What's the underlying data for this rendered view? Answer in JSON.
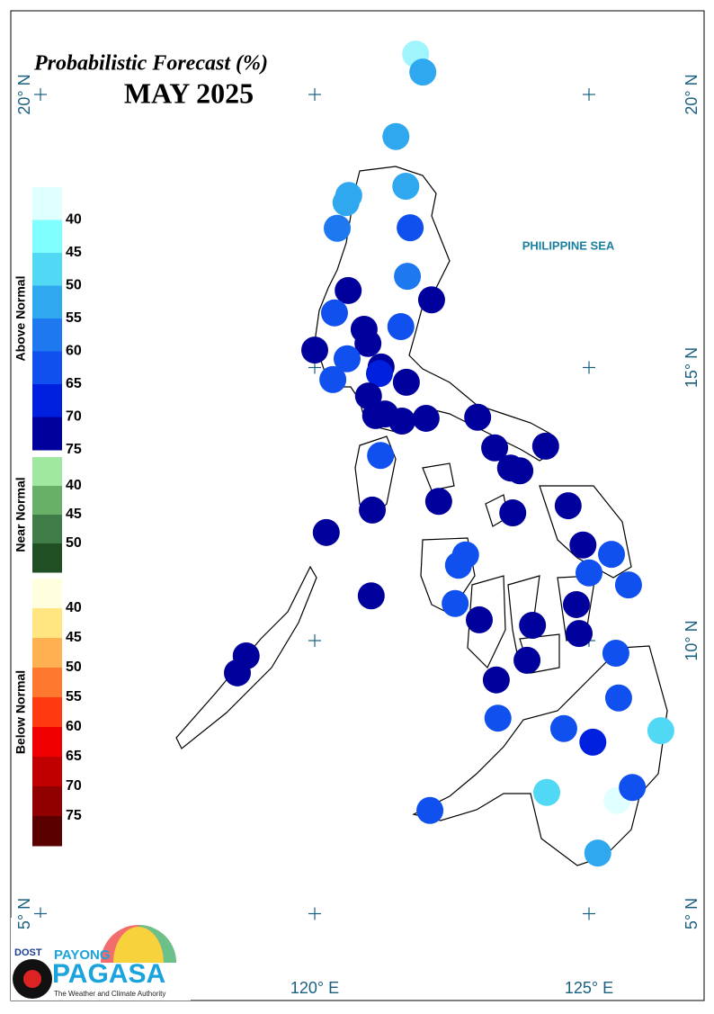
{
  "header": {
    "title": "Probabilistic Forecast (%)",
    "subtitle": "MAY 2025"
  },
  "sea_label": "PHILIPPINE SEA",
  "map": {
    "lon_grid": [
      115,
      120,
      125
    ],
    "lat_grid": [
      20,
      15,
      10,
      5
    ],
    "lon_labels": [
      {
        "value": 120,
        "label": "120° E"
      },
      {
        "value": 125,
        "label": "125° E"
      }
    ],
    "lat_labels_right": [
      {
        "value": 20,
        "label": "20° N"
      },
      {
        "value": 15,
        "label": "15° N"
      },
      {
        "value": 10,
        "label": "10° N"
      },
      {
        "value": 5,
        "label": "5° N"
      }
    ],
    "lat_labels_left": [
      {
        "value": 20,
        "label": "20° N"
      },
      {
        "value": 5,
        "label": "5° N"
      }
    ],
    "stations": [
      {
        "lon": 121.84,
        "lat": 20.74,
        "color": "#9ff5fb"
      },
      {
        "lon": 121.97,
        "lat": 20.41,
        "color": "#2fa8ef"
      },
      {
        "lon": 121.48,
        "lat": 19.23,
        "color": "#2fa8ef"
      },
      {
        "lon": 120.62,
        "lat": 18.15,
        "color": "#2fa8ef"
      },
      {
        "lon": 120.57,
        "lat": 18.02,
        "color": "#2fa8ef"
      },
      {
        "lon": 121.66,
        "lat": 18.32,
        "color": "#2fa8ef"
      },
      {
        "lon": 120.41,
        "lat": 17.55,
        "color": "#1e78f0"
      },
      {
        "lon": 121.74,
        "lat": 17.56,
        "color": "#1050ef"
      },
      {
        "lon": 121.69,
        "lat": 16.67,
        "color": "#1e78f0"
      },
      {
        "lon": 120.61,
        "lat": 16.41,
        "color": "#00009c"
      },
      {
        "lon": 122.13,
        "lat": 16.24,
        "color": "#00009c"
      },
      {
        "lon": 120.36,
        "lat": 16.0,
        "color": "#1050ef"
      },
      {
        "lon": 121.57,
        "lat": 15.75,
        "color": "#1050ef"
      },
      {
        "lon": 120.9,
        "lat": 15.7,
        "color": "#00009c"
      },
      {
        "lon": 120.97,
        "lat": 15.44,
        "color": "#00009c"
      },
      {
        "lon": 120.0,
        "lat": 15.32,
        "color": "#00009c"
      },
      {
        "lon": 120.59,
        "lat": 15.16,
        "color": "#1050ef"
      },
      {
        "lon": 121.21,
        "lat": 15.01,
        "color": "#00009c"
      },
      {
        "lon": 120.33,
        "lat": 14.78,
        "color": "#1050ef"
      },
      {
        "lon": 121.18,
        "lat": 14.89,
        "color": "#0020e0"
      },
      {
        "lon": 121.67,
        "lat": 14.73,
        "color": "#00009c"
      },
      {
        "lon": 120.98,
        "lat": 14.48,
        "color": "#00009c"
      },
      {
        "lon": 121.11,
        "lat": 14.12,
        "color": "#00009c"
      },
      {
        "lon": 121.28,
        "lat": 14.15,
        "color": "#00009c"
      },
      {
        "lon": 121.59,
        "lat": 14.02,
        "color": "#00009c"
      },
      {
        "lon": 122.03,
        "lat": 14.07,
        "color": "#00009c"
      },
      {
        "lon": 122.97,
        "lat": 14.09,
        "color": "#00009c"
      },
      {
        "lon": 123.28,
        "lat": 13.53,
        "color": "#00009c"
      },
      {
        "lon": 124.21,
        "lat": 13.56,
        "color": "#00009c"
      },
      {
        "lon": 121.2,
        "lat": 13.39,
        "color": "#1050ef"
      },
      {
        "lon": 123.57,
        "lat": 13.16,
        "color": "#00009c"
      },
      {
        "lon": 123.74,
        "lat": 13.11,
        "color": "#00009c"
      },
      {
        "lon": 122.26,
        "lat": 12.55,
        "color": "#00009c"
      },
      {
        "lon": 121.05,
        "lat": 12.39,
        "color": "#00009c"
      },
      {
        "lon": 123.61,
        "lat": 12.34,
        "color": "#00009c"
      },
      {
        "lon": 124.62,
        "lat": 12.47,
        "color": "#00009c"
      },
      {
        "lon": 120.21,
        "lat": 11.98,
        "color": "#00009c"
      },
      {
        "lon": 124.89,
        "lat": 11.75,
        "color": "#00009c"
      },
      {
        "lon": 125.41,
        "lat": 11.58,
        "color": "#1050ef"
      },
      {
        "lon": 122.75,
        "lat": 11.57,
        "color": "#1050ef"
      },
      {
        "lon": 122.62,
        "lat": 11.38,
        "color": "#1050ef"
      },
      {
        "lon": 125.0,
        "lat": 11.24,
        "color": "#1050ef"
      },
      {
        "lon": 125.72,
        "lat": 11.02,
        "color": "#1050ef"
      },
      {
        "lon": 121.03,
        "lat": 10.82,
        "color": "#00009c"
      },
      {
        "lon": 122.56,
        "lat": 10.68,
        "color": "#1050ef"
      },
      {
        "lon": 124.77,
        "lat": 10.66,
        "color": "#00009c"
      },
      {
        "lon": 123.0,
        "lat": 10.38,
        "color": "#00009c"
      },
      {
        "lon": 123.97,
        "lat": 10.28,
        "color": "#00009c"
      },
      {
        "lon": 124.82,
        "lat": 10.13,
        "color": "#00009c"
      },
      {
        "lon": 118.75,
        "lat": 9.72,
        "color": "#00009c"
      },
      {
        "lon": 118.59,
        "lat": 9.41,
        "color": "#00009c"
      },
      {
        "lon": 125.49,
        "lat": 9.77,
        "color": "#1050ef"
      },
      {
        "lon": 123.87,
        "lat": 9.64,
        "color": "#00009c"
      },
      {
        "lon": 123.31,
        "lat": 9.28,
        "color": "#00009c"
      },
      {
        "lon": 125.54,
        "lat": 8.95,
        "color": "#1050ef"
      },
      {
        "lon": 123.34,
        "lat": 8.58,
        "color": "#1050ef"
      },
      {
        "lon": 124.54,
        "lat": 8.39,
        "color": "#1050ef"
      },
      {
        "lon": 125.07,
        "lat": 8.14,
        "color": "#0020e0"
      },
      {
        "lon": 126.31,
        "lat": 8.35,
        "color": "#50d8f5"
      },
      {
        "lon": 125.51,
        "lat": 7.07,
        "color": "#e0ffff"
      },
      {
        "lon": 125.79,
        "lat": 7.31,
        "color": "#1050ef"
      },
      {
        "lon": 124.23,
        "lat": 7.22,
        "color": "#50d8f5"
      },
      {
        "lon": 122.1,
        "lat": 6.89,
        "color": "#1050ef"
      },
      {
        "lon": 125.16,
        "lat": 6.11,
        "color": "#2fa8ef"
      }
    ]
  },
  "legend": [
    {
      "name": "Above Normal",
      "colors": [
        "#e0ffff",
        "#80ffff",
        "#50d8f5",
        "#2fa8ef",
        "#1e78f0",
        "#1050ef",
        "#0020e0",
        "#00009c"
      ],
      "labels": [
        "40",
        "45",
        "50",
        "55",
        "60",
        "65",
        "70",
        "75"
      ]
    },
    {
      "name": "Near Normal",
      "colors": [
        "#a0e8a0",
        "#68b068",
        "#3f7c48",
        "#1f4f22"
      ],
      "labels": [
        "40",
        "45",
        "50"
      ]
    },
    {
      "name": "Below Normal",
      "colors": [
        "#ffffe0",
        "#ffe680",
        "#ffb050",
        "#ff7830",
        "#ff3a10",
        "#f00000",
        "#c00000",
        "#900000",
        "#5a0000"
      ],
      "labels": [
        "40",
        "45",
        "50",
        "55",
        "60",
        "65",
        "70",
        "75"
      ]
    }
  ],
  "logo": {
    "agency": "DOST",
    "brand_top": "PAYONG",
    "brand": "PAGASA",
    "tagline": "The Weather and Climate Authority"
  }
}
